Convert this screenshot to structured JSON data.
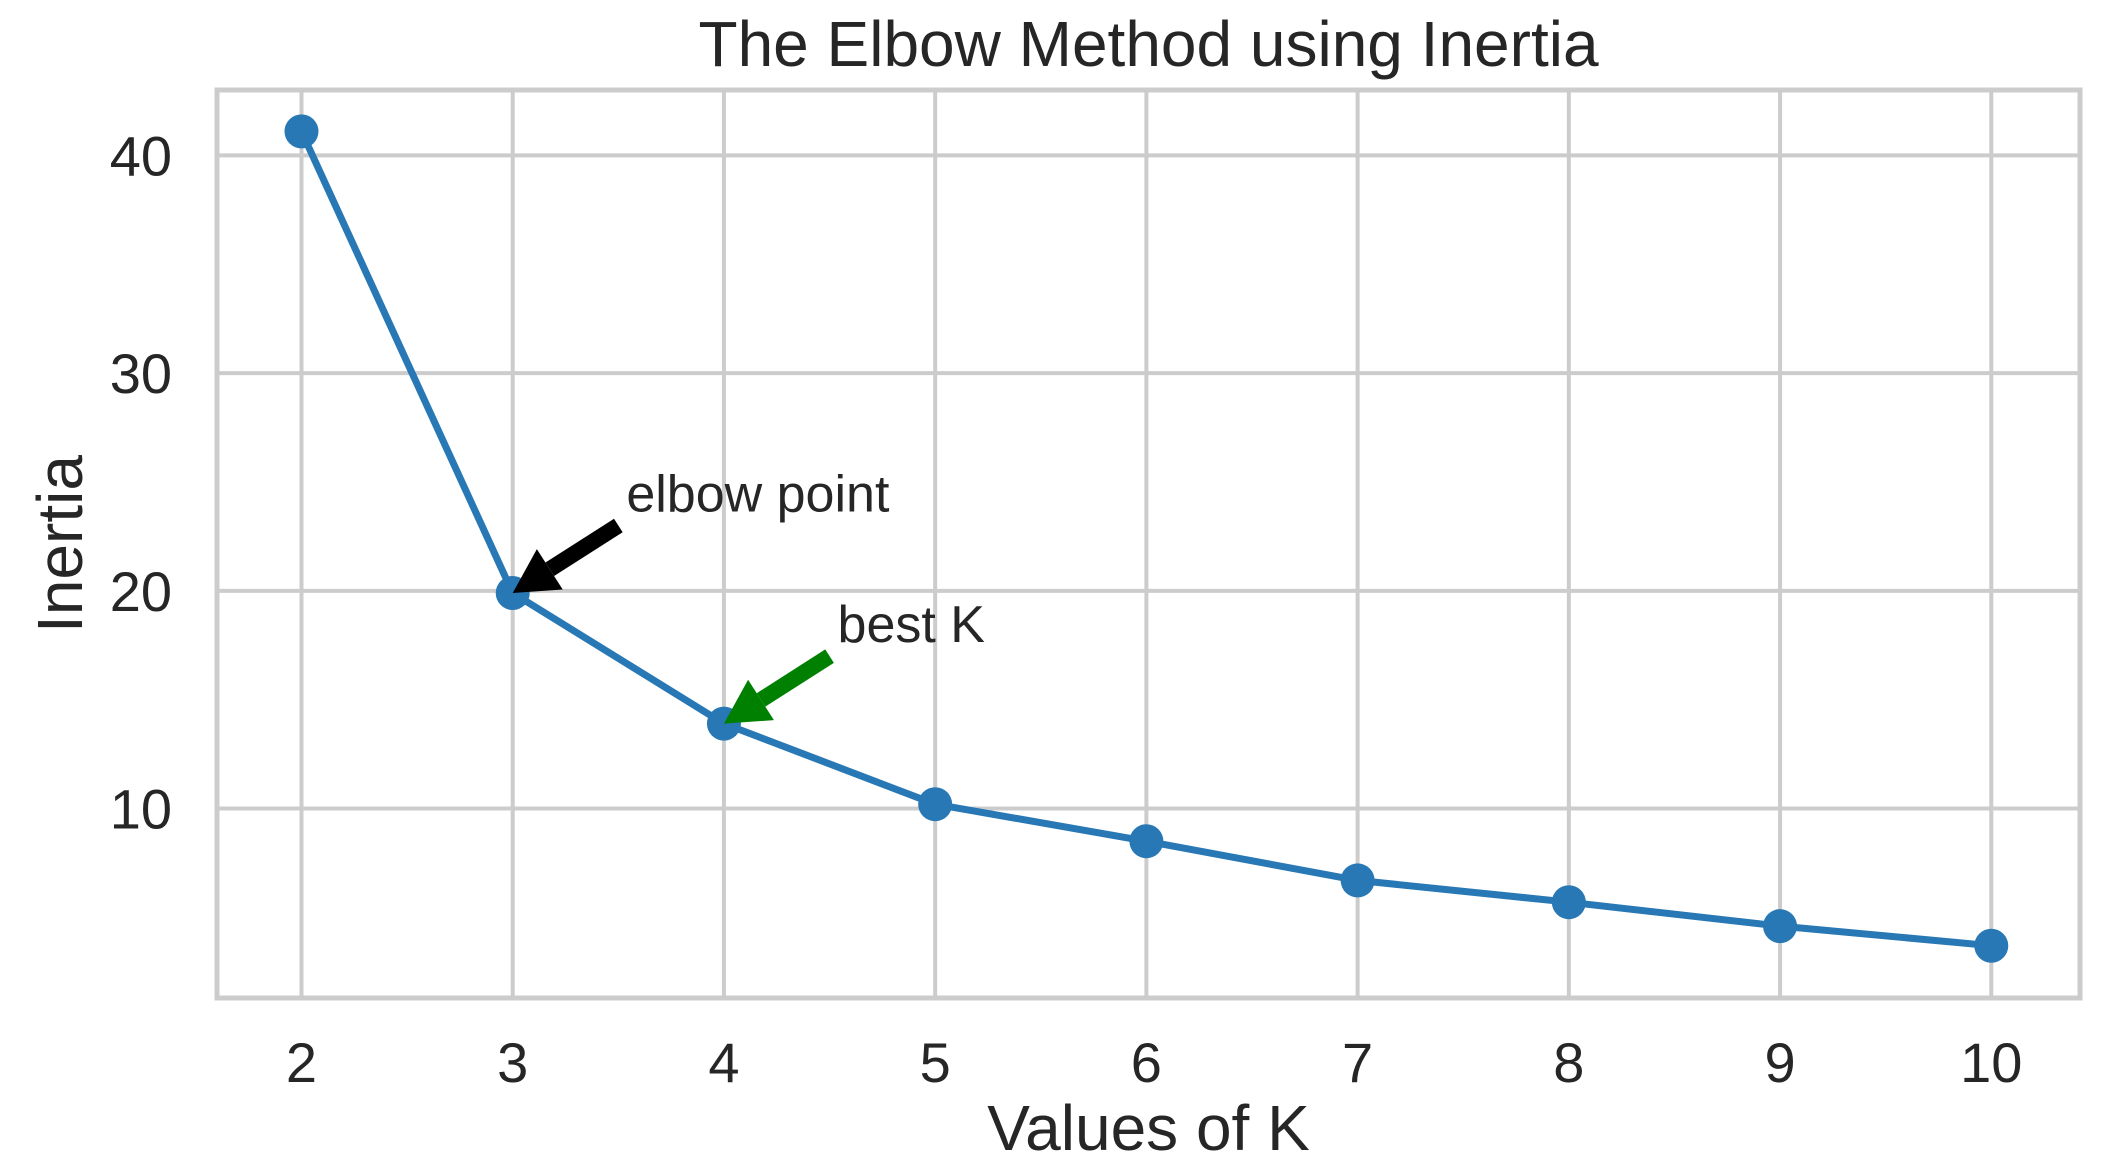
{
  "chart_data": {
    "type": "line",
    "title": "The Elbow Method using Inertia",
    "xlabel": "Values of K",
    "ylabel": "Inertia",
    "x": [
      2,
      3,
      4,
      5,
      6,
      7,
      8,
      9,
      10
    ],
    "series": [
      {
        "values": [
          41.1,
          19.9,
          13.9,
          10.2,
          8.5,
          6.7,
          5.7,
          4.6,
          3.7
        ],
        "color": "#2878b5"
      }
    ],
    "xlim": [
      1.6,
      10.42
    ],
    "ylim": [
      1.3,
      43.0
    ],
    "xticks": [
      2,
      3,
      4,
      5,
      6,
      7,
      8,
      9,
      10
    ],
    "yticks": [
      10,
      20,
      30,
      40
    ],
    "grid": true,
    "legend": "none",
    "annotations": [
      {
        "text": "elbow point",
        "point_x": 3,
        "point_y": 19.9,
        "text_x": 3.5,
        "text_y": 23.0,
        "color": "#000000"
      },
      {
        "text": "best K",
        "point_x": 4,
        "point_y": 13.9,
        "text_x": 4.5,
        "text_y": 17.0,
        "color": "#008000"
      }
    ]
  }
}
